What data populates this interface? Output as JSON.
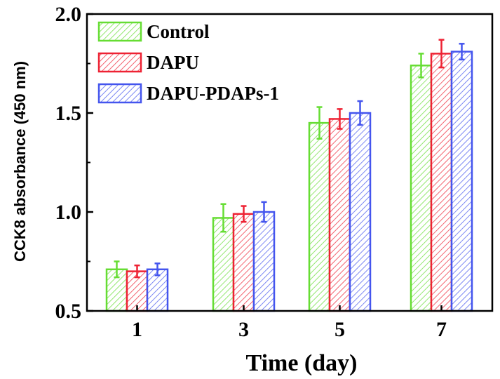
{
  "chart_data": {
    "type": "bar",
    "xlabel": "Time (day)",
    "ylabel": "CCK8 absorbance (450 nm)",
    "ylim": [
      0.5,
      2.0
    ],
    "yticks": [
      "0.5",
      "1.0",
      "1.5",
      "2.0"
    ],
    "categories": [
      "1",
      "3",
      "5",
      "7"
    ],
    "series": [
      {
        "name": "Control",
        "color": "#66dd33",
        "values": [
          0.71,
          0.97,
          1.45,
          1.74
        ],
        "errors": [
          0.04,
          0.07,
          0.08,
          0.06
        ]
      },
      {
        "name": "DAPU",
        "color": "#ee2233",
        "values": [
          0.7,
          0.99,
          1.47,
          1.8
        ],
        "errors": [
          0.03,
          0.04,
          0.05,
          0.07
        ]
      },
      {
        "name": "DAPU-PDAPs-1",
        "color": "#4455ee",
        "values": [
          0.71,
          1.0,
          1.5,
          1.81
        ],
        "errors": [
          0.03,
          0.05,
          0.06,
          0.04
        ]
      }
    ],
    "legend_position": "top-left",
    "grid": false
  }
}
